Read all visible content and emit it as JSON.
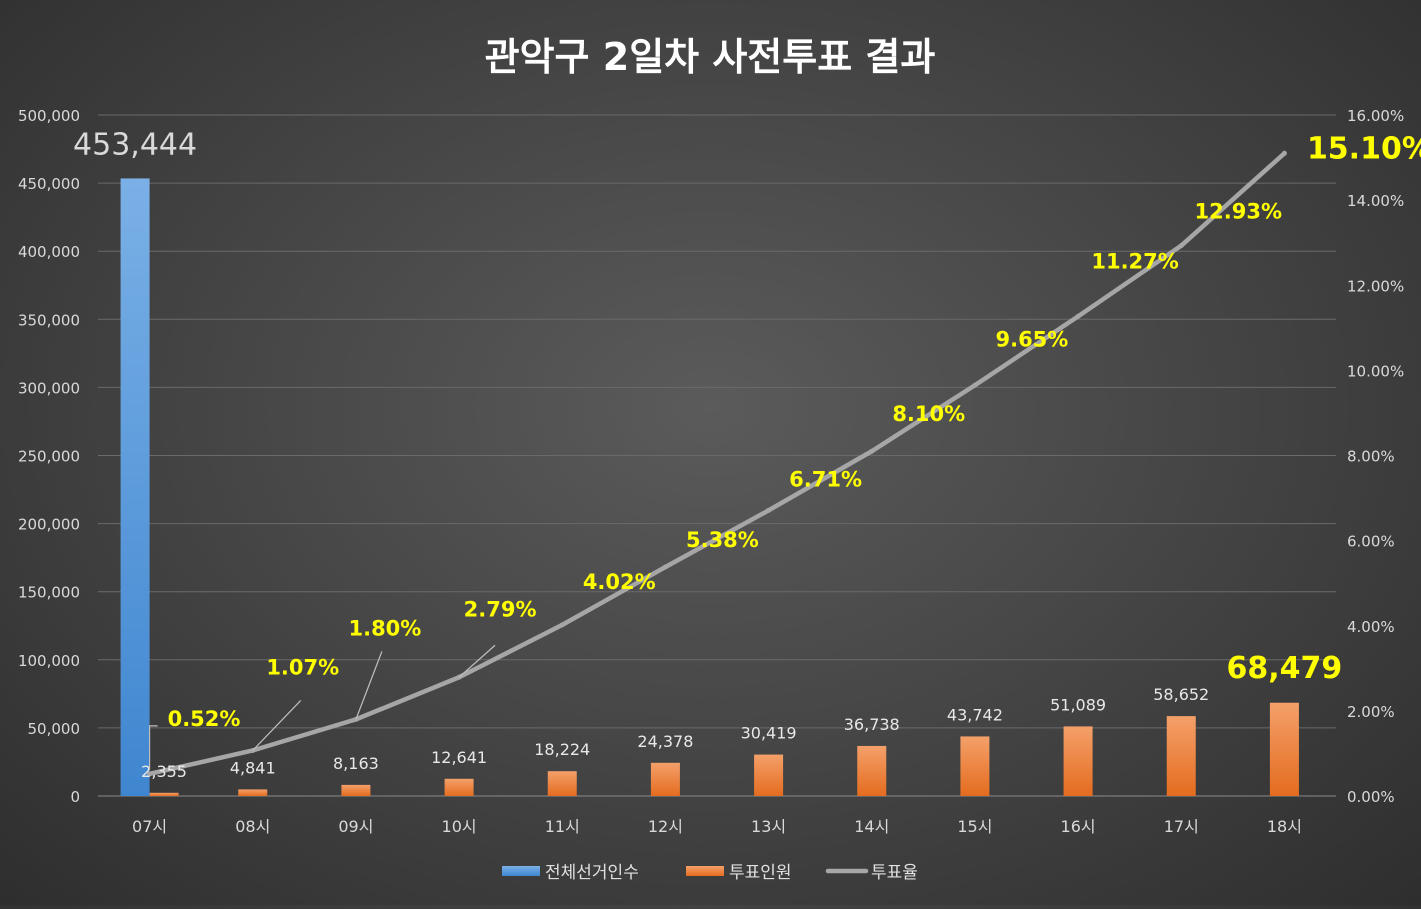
{
  "chart_data": {
    "type": "bar",
    "title": "관악구 2일차 사전투표 결과",
    "categories": [
      "07시",
      "08시",
      "09시",
      "10시",
      "11시",
      "12시",
      "13시",
      "14시",
      "15시",
      "16시",
      "17시",
      "18시"
    ],
    "series": [
      {
        "name": "전체선거인수",
        "kind": "bar",
        "axis": "left",
        "color": "#4a90d9",
        "values": [
          453444,
          null,
          null,
          null,
          null,
          null,
          null,
          null,
          null,
          null,
          null,
          null
        ],
        "labels": [
          "453,444"
        ]
      },
      {
        "name": "투표인원",
        "kind": "bar",
        "axis": "left",
        "color": "#ed7d31",
        "values": [
          2355,
          4841,
          8163,
          12641,
          18224,
          24378,
          30419,
          36738,
          43742,
          51089,
          58652,
          68479
        ],
        "labels": [
          "2,355",
          "4,841",
          "8,163",
          "12,641",
          "18,224",
          "24,378",
          "30,419",
          "36,738",
          "43,742",
          "51,089",
          "58,652",
          "68,479"
        ]
      },
      {
        "name": "투표율",
        "kind": "line",
        "axis": "right",
        "color": "#a6a6a6",
        "values": [
          0.52,
          1.07,
          1.8,
          2.79,
          4.02,
          5.38,
          6.71,
          8.1,
          9.65,
          11.27,
          12.93,
          15.1
        ],
        "labels": [
          "0.52%",
          "1.07%",
          "1.80%",
          "2.79%",
          "4.02%",
          "5.38%",
          "6.71%",
          "8.10%",
          "9.65%",
          "11.27%",
          "12.93%",
          "15.10%"
        ]
      }
    ],
    "y_left": {
      "min": 0,
      "max": 500000,
      "step": 50000,
      "tick_labels": [
        "0",
        "50,000",
        "100,000",
        "150,000",
        "200,000",
        "250,000",
        "300,000",
        "350,000",
        "400,000",
        "450,000",
        "500,000"
      ]
    },
    "y_right": {
      "min": 0,
      "max": 16,
      "step": 2,
      "tick_labels": [
        "0.00%",
        "2.00%",
        "4.00%",
        "6.00%",
        "8.00%",
        "10.00%",
        "12.00%",
        "14.00%",
        "16.00%"
      ]
    },
    "grid": true,
    "legend_position": "bottom",
    "label_color": "#ffff00"
  }
}
